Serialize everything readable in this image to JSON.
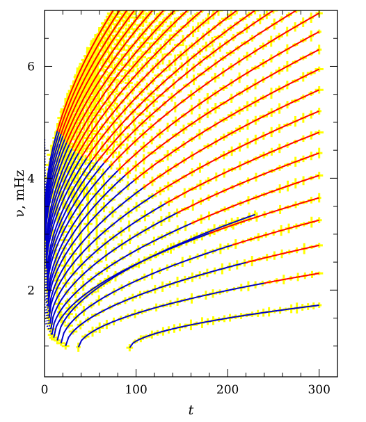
{
  "chart_data": {
    "type": "line",
    "title": "",
    "xlabel": "t",
    "ylabel": "ν, mHz",
    "xlim": [
      0,
      320
    ],
    "ylim": [
      0.45,
      7.0
    ],
    "x_ticks": [
      0,
      100,
      200,
      300
    ],
    "x_tick_labels": [
      "0",
      "100",
      "200",
      "300"
    ],
    "y_ticks": [
      2,
      4,
      6
    ],
    "y_tick_labels": [
      "2",
      "4",
      "6"
    ],
    "grid": false,
    "legend": "none",
    "colors": {
      "error_bars": "#ffff00",
      "fit_lower": "#0000cc",
      "fit_upper": "#ff0000",
      "dotted_fit": "#0000cc"
    },
    "series": [
      {
        "start": [
          93,
          0.97
        ],
        "end": [
          300,
          1.73
        ],
        "dotted_from": null,
        "transition_t": null
      },
      {
        "start": [
          37,
          0.98
        ],
        "end": [
          300,
          2.3
        ],
        "dotted_from": null,
        "transition_t": 240
      },
      {
        "start": [
          23,
          1.0
        ],
        "end": [
          300,
          2.8
        ],
        "dotted_from": null,
        "transition_t": 220
      },
      {
        "start": [
          18,
          1.05
        ],
        "end": [
          300,
          3.25
        ],
        "dotted_from": null,
        "transition_t": 205
      },
      {
        "start": [
          14,
          1.1
        ],
        "end": [
          230,
          3.35
        ],
        "dotted_from": null,
        "transition_t": null
      },
      {
        "start": [
          10,
          1.15
        ],
        "end": [
          300,
          3.65
        ],
        "dotted_from": null,
        "transition_t": 180
      },
      {
        "start": [
          8,
          1.2
        ],
        "end": [
          300,
          4.05
        ],
        "dotted_from": [
          0,
          1.45
        ],
        "transition_t": 160
      },
      {
        "start": [
          7,
          1.3
        ],
        "end": [
          300,
          4.45
        ],
        "dotted_from": [
          0,
          1.55
        ],
        "transition_t": 145
      },
      {
        "start": [
          6,
          1.4
        ],
        "end": [
          300,
          4.82
        ],
        "dotted_from": [
          0,
          1.65
        ],
        "transition_t": 132
      },
      {
        "start": [
          5,
          1.5
        ],
        "end": [
          300,
          5.2
        ],
        "dotted_from": [
          0,
          1.75
        ],
        "transition_t": 120
      },
      {
        "start": [
          5,
          1.6
        ],
        "end": [
          300,
          5.58
        ],
        "dotted_from": [
          0,
          1.88
        ],
        "transition_t": 108
      },
      {
        "start": [
          4,
          1.7
        ],
        "end": [
          300,
          5.95
        ],
        "dotted_from": [
          0,
          2.0
        ],
        "transition_t": 98
      },
      {
        "start": [
          4,
          1.8
        ],
        "end": [
          300,
          6.3
        ],
        "dotted_from": [
          0,
          2.15
        ],
        "transition_t": 88
      },
      {
        "start": [
          4,
          1.9
        ],
        "end": [
          300,
          6.62
        ],
        "dotted_from": [
          0,
          2.3
        ],
        "transition_t": 80
      },
      {
        "start": [
          3,
          2.0
        ],
        "end": [
          300,
          6.95
        ],
        "dotted_from": [
          0,
          2.45
        ],
        "transition_t": 72
      },
      {
        "start": [
          3,
          2.1
        ],
        "end": [
          275,
          7.0
        ],
        "dotted_from": [
          0,
          2.6
        ],
        "transition_t": 65
      },
      {
        "start": [
          3,
          2.2
        ],
        "end": [
          250,
          7.0
        ],
        "dotted_from": [
          0,
          2.75
        ],
        "transition_t": 58
      },
      {
        "start": [
          3,
          2.3
        ],
        "end": [
          230,
          7.0
        ],
        "dotted_from": [
          0,
          2.9
        ],
        "transition_t": 52
      },
      {
        "start": [
          2,
          2.4
        ],
        "end": [
          210,
          7.0
        ],
        "dotted_from": [
          0,
          3.05
        ],
        "transition_t": 46
      },
      {
        "start": [
          2,
          2.5
        ],
        "end": [
          190,
          7.0
        ],
        "dotted_from": [
          0,
          3.2
        ],
        "transition_t": 41
      },
      {
        "start": [
          2,
          2.6
        ],
        "end": [
          172,
          7.0
        ],
        "dotted_from": [
          0,
          3.35
        ],
        "transition_t": 37
      },
      {
        "start": [
          2,
          2.7
        ],
        "end": [
          156,
          7.0
        ],
        "dotted_from": [
          0,
          3.5
        ],
        "transition_t": 33
      },
      {
        "start": [
          2,
          2.8
        ],
        "end": [
          142,
          7.0
        ],
        "dotted_from": [
          0,
          3.65
        ],
        "transition_t": 30
      },
      {
        "start": [
          1,
          2.9
        ],
        "end": [
          130,
          7.0
        ],
        "dotted_from": [
          0,
          3.8
        ],
        "transition_t": 27
      },
      {
        "start": [
          1,
          3.0
        ],
        "end": [
          118,
          7.0
        ],
        "dotted_from": [
          0,
          3.95
        ],
        "transition_t": 24
      },
      {
        "start": [
          1,
          3.1
        ],
        "end": [
          108,
          7.0
        ],
        "dotted_from": [
          0,
          4.1
        ],
        "transition_t": 22
      },
      {
        "start": [
          1,
          3.2
        ],
        "end": [
          98,
          7.0
        ],
        "dotted_from": [
          0,
          4.25
        ],
        "transition_t": 20
      },
      {
        "start": [
          1,
          3.3
        ],
        "end": [
          90,
          7.0
        ],
        "dotted_from": [
          0,
          4.4
        ],
        "transition_t": 18
      },
      {
        "start": [
          1,
          3.4
        ],
        "end": [
          82,
          7.0
        ],
        "dotted_from": [
          0,
          4.55
        ],
        "transition_t": 16
      },
      {
        "start": [
          1,
          3.5
        ],
        "end": [
          75,
          7.0
        ],
        "dotted_from": [
          0,
          4.7
        ],
        "transition_t": 14
      }
    ]
  }
}
